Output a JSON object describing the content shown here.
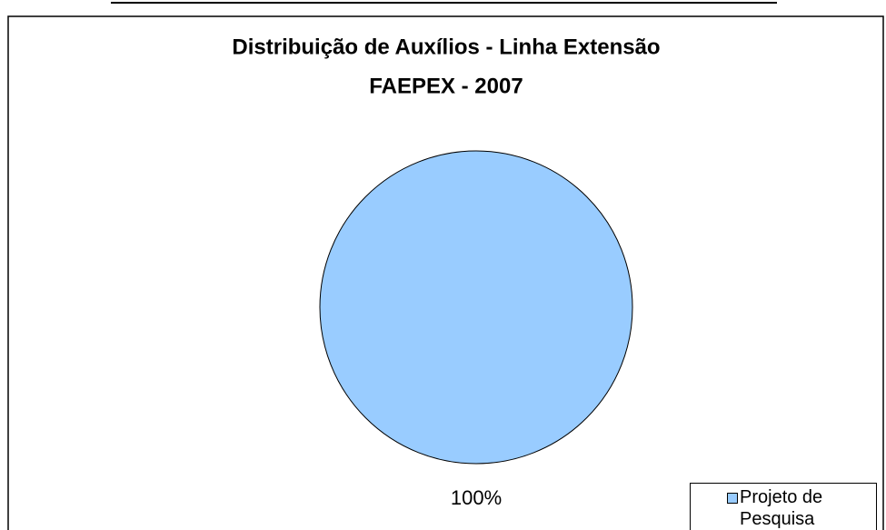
{
  "chart_data": {
    "type": "pie",
    "title": "Distribuição de Auxílios - Linha Extensão",
    "subtitle": "FAEPEX - 2007",
    "categories": [
      "Projeto de Pesquisa"
    ],
    "values": [
      100
    ],
    "value_labels": [
      "100%"
    ],
    "colors": [
      "#99ccff"
    ],
    "legend": "bottom-right"
  }
}
